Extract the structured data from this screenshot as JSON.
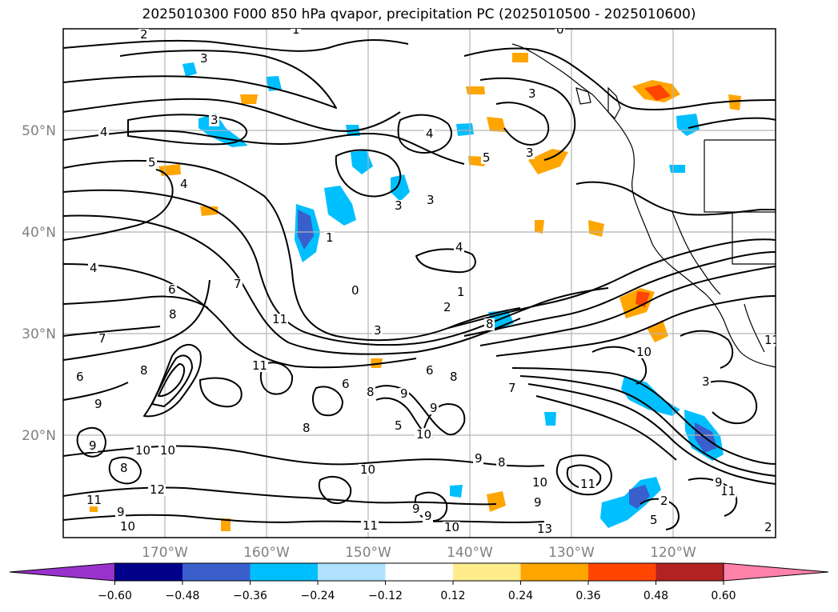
{
  "title": "2025010300 F000 850 hPa qvapor, precipitation PC (2025010500 - 2025010600)",
  "lon_labels": [
    "170°W",
    "160°W",
    "150°W",
    "140°W",
    "130°W",
    "120°W"
  ],
  "lat_labels": [
    "50°N",
    "40°N",
    "30°N",
    "20°N"
  ],
  "colorbar": {
    "tick_labels": [
      "−0.60",
      "−0.48",
      "−0.36",
      "−0.24",
      "−0.12",
      "0.12",
      "0.24",
      "0.36",
      "0.48",
      "0.60"
    ],
    "colors": [
      "#9932cc",
      "#00008b",
      "#3a5fcd",
      "#00bfff",
      "#b0e2ff",
      "#ffffff",
      "#ffec8b",
      "#ffa500",
      "#ff4500",
      "#b22222",
      "#ff82ab"
    ]
  },
  "contour_labels": [
    "2",
    "1",
    "0",
    "3",
    "3",
    "3",
    "3",
    "5",
    "4",
    "4",
    "5",
    "4",
    "4",
    "3",
    "3",
    "4",
    "1",
    "0",
    "1",
    "2",
    "3",
    "8",
    "6",
    "7",
    "8",
    "7",
    "8",
    "6",
    "11",
    "11",
    "6",
    "8",
    "9",
    "8",
    "5",
    "10",
    "9",
    "6",
    "7",
    "8",
    "9",
    "10",
    "9",
    "8",
    "10",
    "11",
    "9",
    "10",
    "12",
    "11",
    "9",
    "8",
    "9",
    "10",
    "9",
    "9",
    "10",
    "11",
    "13",
    "10",
    "11",
    "11",
    "10",
    "9",
    "3",
    "5",
    "2",
    "2"
  ],
  "features": {
    "coastline_color": "#000000",
    "grid_color": "#b4b4b4"
  }
}
